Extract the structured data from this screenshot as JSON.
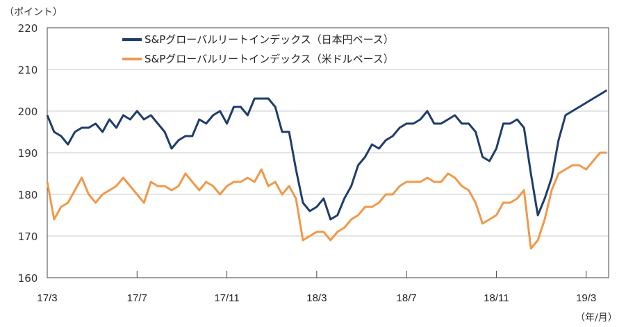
{
  "chart_data": {
    "type": "line",
    "title": "",
    "ylabel": "（ポイント）",
    "xlabel": "（年/月）",
    "ylim": [
      160,
      220
    ],
    "yticks": [
      "160",
      "170",
      "180",
      "190",
      "200",
      "210",
      "220"
    ],
    "xticks": [
      "17/3",
      "17/7",
      "17/11",
      "18/3",
      "18/7",
      "18/11",
      "19/3"
    ],
    "xtick_months": [
      0,
      4,
      8,
      12,
      16,
      20,
      24
    ],
    "x_range_months": [
      0,
      25
    ],
    "x_start_month": 0,
    "x_step_months": 0.3077,
    "grid": "horizontal",
    "legend_position": "top-center",
    "series": [
      {
        "name": "S&Pグローバルリートインデックス（日本円ベース）",
        "color": "#1f3d6b",
        "values": [
          199,
          195,
          194,
          192,
          195,
          196,
          196,
          197,
          195,
          198,
          196,
          199,
          198,
          200,
          198,
          199,
          197,
          195,
          191,
          193,
          194,
          194,
          198,
          197,
          199,
          200,
          197,
          201,
          201,
          199,
          203,
          203,
          203,
          201,
          195,
          195,
          186,
          178,
          176,
          177,
          179,
          174,
          175,
          179,
          182,
          187,
          189,
          192,
          191,
          193,
          194,
          196,
          197,
          197,
          198,
          200,
          197,
          197,
          198,
          199,
          197,
          197,
          195,
          189,
          188,
          191,
          197,
          197,
          198,
          196,
          185,
          175,
          179,
          184,
          193,
          199,
          200,
          201,
          202,
          203,
          204,
          205
        ]
      },
      {
        "name": "S&Pグローバルリートインデックス（米ドルベース）",
        "color": "#f0994a",
        "values": [
          183,
          174,
          177,
          178,
          181,
          184,
          180,
          178,
          180,
          181,
          182,
          184,
          182,
          180,
          178,
          183,
          182,
          182,
          181,
          182,
          185,
          183,
          181,
          183,
          182,
          180,
          182,
          183,
          183,
          184,
          183,
          186,
          182,
          183,
          180,
          182,
          179,
          169,
          170,
          171,
          171,
          169,
          171,
          172,
          174,
          175,
          177,
          177,
          178,
          180,
          180,
          182,
          183,
          183,
          183,
          184,
          183,
          183,
          185,
          184,
          182,
          181,
          178,
          173,
          174,
          175,
          178,
          178,
          179,
          181,
          167,
          169,
          174,
          181,
          185,
          186,
          187,
          187,
          186,
          188,
          190,
          190
        ]
      }
    ]
  }
}
